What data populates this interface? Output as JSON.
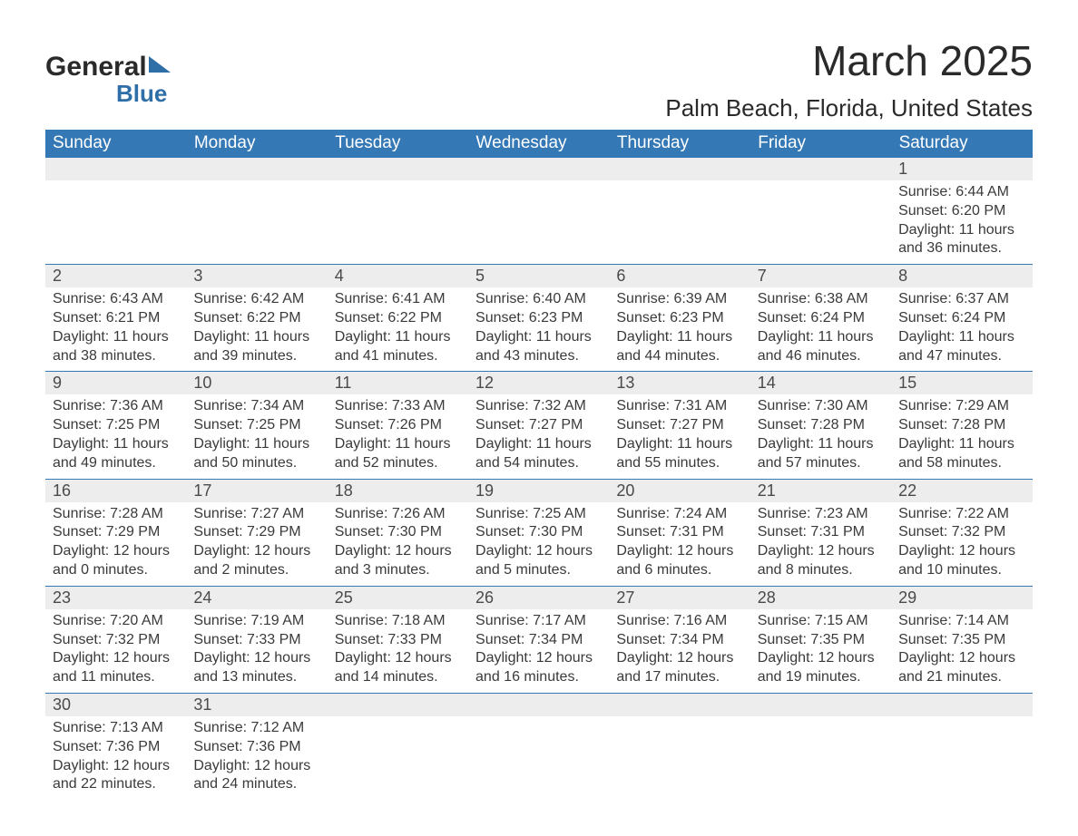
{
  "logo": {
    "name": "General",
    "sub": "Blue"
  },
  "title": "March 2025",
  "location": "Palm Beach, Florida, United States",
  "colors": {
    "header_bg": "#3478b6",
    "header_text": "#ffffff",
    "daynum_bg": "#ededed",
    "row_border": "#3478b6",
    "body_text": "#3a3a3a"
  },
  "dayNames": [
    "Sunday",
    "Monday",
    "Tuesday",
    "Wednesday",
    "Thursday",
    "Friday",
    "Saturday"
  ],
  "weeks": [
    {
      "nums": [
        "",
        "",
        "",
        "",
        "",
        "",
        "1"
      ],
      "cells": [
        null,
        null,
        null,
        null,
        null,
        null,
        {
          "sunrise": "6:44 AM",
          "sunset": "6:20 PM",
          "daylight": "11 hours and 36 minutes."
        }
      ]
    },
    {
      "nums": [
        "2",
        "3",
        "4",
        "5",
        "6",
        "7",
        "8"
      ],
      "cells": [
        {
          "sunrise": "6:43 AM",
          "sunset": "6:21 PM",
          "daylight": "11 hours and 38 minutes."
        },
        {
          "sunrise": "6:42 AM",
          "sunset": "6:22 PM",
          "daylight": "11 hours and 39 minutes."
        },
        {
          "sunrise": "6:41 AM",
          "sunset": "6:22 PM",
          "daylight": "11 hours and 41 minutes."
        },
        {
          "sunrise": "6:40 AM",
          "sunset": "6:23 PM",
          "daylight": "11 hours and 43 minutes."
        },
        {
          "sunrise": "6:39 AM",
          "sunset": "6:23 PM",
          "daylight": "11 hours and 44 minutes."
        },
        {
          "sunrise": "6:38 AM",
          "sunset": "6:24 PM",
          "daylight": "11 hours and 46 minutes."
        },
        {
          "sunrise": "6:37 AM",
          "sunset": "6:24 PM",
          "daylight": "11 hours and 47 minutes."
        }
      ]
    },
    {
      "nums": [
        "9",
        "10",
        "11",
        "12",
        "13",
        "14",
        "15"
      ],
      "cells": [
        {
          "sunrise": "7:36 AM",
          "sunset": "7:25 PM",
          "daylight": "11 hours and 49 minutes."
        },
        {
          "sunrise": "7:34 AM",
          "sunset": "7:25 PM",
          "daylight": "11 hours and 50 minutes."
        },
        {
          "sunrise": "7:33 AM",
          "sunset": "7:26 PM",
          "daylight": "11 hours and 52 minutes."
        },
        {
          "sunrise": "7:32 AM",
          "sunset": "7:27 PM",
          "daylight": "11 hours and 54 minutes."
        },
        {
          "sunrise": "7:31 AM",
          "sunset": "7:27 PM",
          "daylight": "11 hours and 55 minutes."
        },
        {
          "sunrise": "7:30 AM",
          "sunset": "7:28 PM",
          "daylight": "11 hours and 57 minutes."
        },
        {
          "sunrise": "7:29 AM",
          "sunset": "7:28 PM",
          "daylight": "11 hours and 58 minutes."
        }
      ]
    },
    {
      "nums": [
        "16",
        "17",
        "18",
        "19",
        "20",
        "21",
        "22"
      ],
      "cells": [
        {
          "sunrise": "7:28 AM",
          "sunset": "7:29 PM",
          "daylight": "12 hours and 0 minutes."
        },
        {
          "sunrise": "7:27 AM",
          "sunset": "7:29 PM",
          "daylight": "12 hours and 2 minutes."
        },
        {
          "sunrise": "7:26 AM",
          "sunset": "7:30 PM",
          "daylight": "12 hours and 3 minutes."
        },
        {
          "sunrise": "7:25 AM",
          "sunset": "7:30 PM",
          "daylight": "12 hours and 5 minutes."
        },
        {
          "sunrise": "7:24 AM",
          "sunset": "7:31 PM",
          "daylight": "12 hours and 6 minutes."
        },
        {
          "sunrise": "7:23 AM",
          "sunset": "7:31 PM",
          "daylight": "12 hours and 8 minutes."
        },
        {
          "sunrise": "7:22 AM",
          "sunset": "7:32 PM",
          "daylight": "12 hours and 10 minutes."
        }
      ]
    },
    {
      "nums": [
        "23",
        "24",
        "25",
        "26",
        "27",
        "28",
        "29"
      ],
      "cells": [
        {
          "sunrise": "7:20 AM",
          "sunset": "7:32 PM",
          "daylight": "12 hours and 11 minutes."
        },
        {
          "sunrise": "7:19 AM",
          "sunset": "7:33 PM",
          "daylight": "12 hours and 13 minutes."
        },
        {
          "sunrise": "7:18 AM",
          "sunset": "7:33 PM",
          "daylight": "12 hours and 14 minutes."
        },
        {
          "sunrise": "7:17 AM",
          "sunset": "7:34 PM",
          "daylight": "12 hours and 16 minutes."
        },
        {
          "sunrise": "7:16 AM",
          "sunset": "7:34 PM",
          "daylight": "12 hours and 17 minutes."
        },
        {
          "sunrise": "7:15 AM",
          "sunset": "7:35 PM",
          "daylight": "12 hours and 19 minutes."
        },
        {
          "sunrise": "7:14 AM",
          "sunset": "7:35 PM",
          "daylight": "12 hours and 21 minutes."
        }
      ]
    },
    {
      "nums": [
        "30",
        "31",
        "",
        "",
        "",
        "",
        ""
      ],
      "cells": [
        {
          "sunrise": "7:13 AM",
          "sunset": "7:36 PM",
          "daylight": "12 hours and 22 minutes."
        },
        {
          "sunrise": "7:12 AM",
          "sunset": "7:36 PM",
          "daylight": "12 hours and 24 minutes."
        },
        null,
        null,
        null,
        null,
        null
      ]
    }
  ],
  "labels": {
    "sunrise": "Sunrise:",
    "sunset": "Sunset:",
    "daylight": "Daylight:"
  }
}
